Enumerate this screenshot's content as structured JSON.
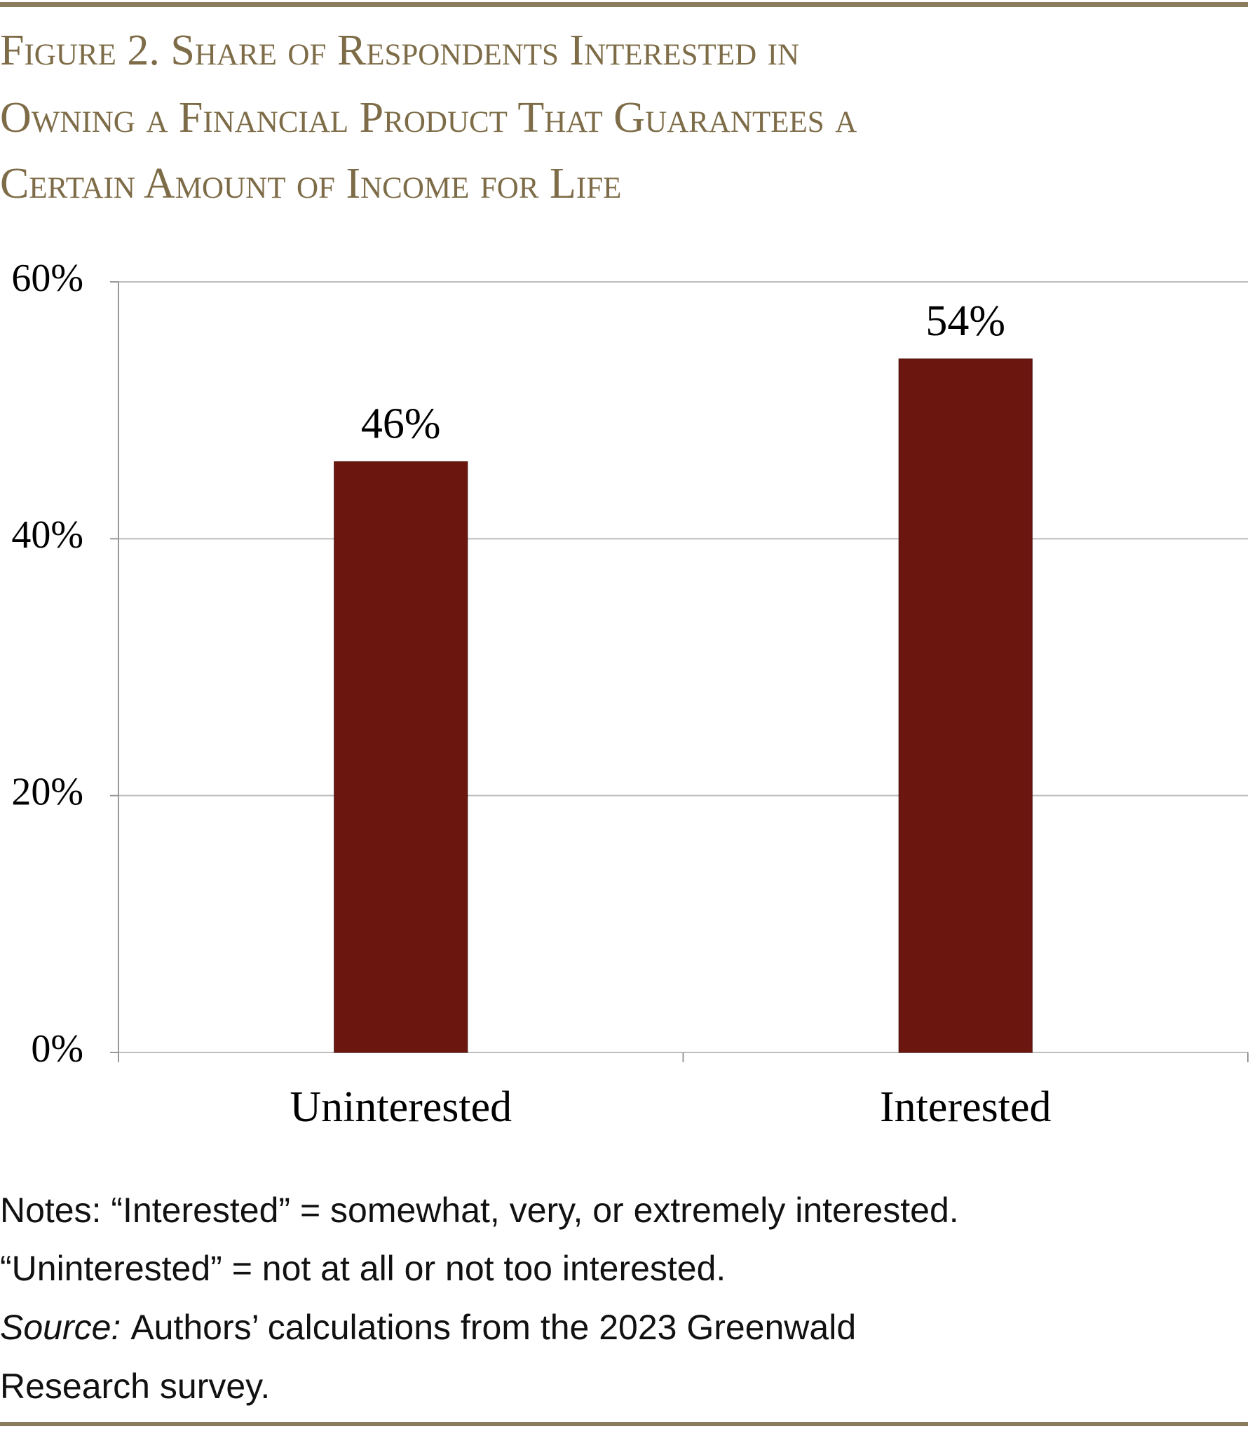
{
  "chart_data": {
    "type": "bar",
    "title_lines": [
      "Figure 2. Share of Respondents Interested in",
      "Owning a Financial Product That Guarantees a",
      "Certain Amount of Income for Life"
    ],
    "categories": [
      "Uninterested",
      "Interested"
    ],
    "values": [
      46,
      54
    ],
    "value_labels": [
      "46%",
      "54%"
    ],
    "color": "#6b170f",
    "ylim": [
      0,
      60
    ],
    "yticks": [
      {
        "value": 0,
        "label": "0%"
      },
      {
        "value": 20,
        "label": "20%"
      },
      {
        "value": 40,
        "label": "40%"
      },
      {
        "value": 60,
        "label": "60%"
      }
    ],
    "grid": true,
    "notes": [
      "Notes: “Interested” = somewhat, very, or extremely interested.",
      "“Uninterested” = not at all or not too interested."
    ],
    "source_label": "Source:",
    "source_lines": [
      "Authors’ calculations from the 2023 Greenwald",
      "Research survey."
    ]
  }
}
